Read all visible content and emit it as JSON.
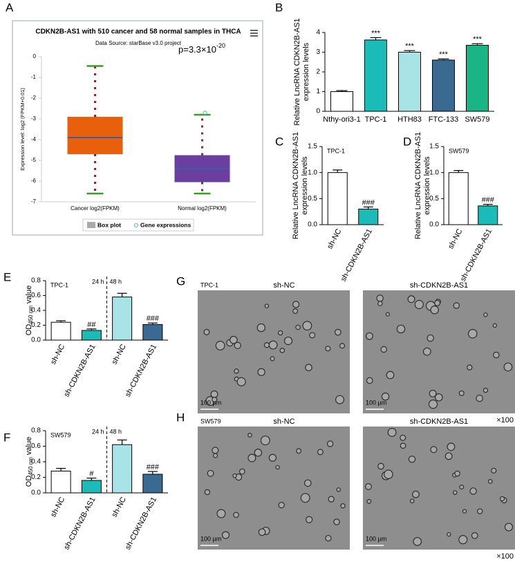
{
  "chart_data": [
    {
      "type": "box",
      "letter": "A",
      "title": "CDKN2B-AS1 with 510 cancer and 58 normal samples in THCA",
      "subtitle": "Data Source: starBase v3.0 project",
      "annotation": {
        "base": "p=3.3×10",
        "exponent": "-20"
      },
      "ylabel": "Expression level: log2 (FPKM+0.01)",
      "categories": [
        "Cancer log2(FPKM)",
        "Normal log2(FPKM)"
      ],
      "boxes": [
        {
          "whislo": -6.6,
          "q1": -4.7,
          "med": -3.9,
          "q3": -2.9,
          "whishi": -0.45,
          "fliers": [],
          "color": "#e8600c"
        },
        {
          "whislo": -6.6,
          "q1": -6.05,
          "med": -5.4,
          "q3": -4.75,
          "whishi": -2.8,
          "fliers": [
            -2.7
          ],
          "color": "#6a3fa0"
        }
      ],
      "ylim": [
        -7,
        0
      ],
      "yticks": [
        0,
        -1,
        -2,
        -3,
        -4,
        -5,
        -6,
        -7
      ],
      "legend": [
        "Box plot",
        "Gene expressions"
      ]
    },
    {
      "type": "bar",
      "letter": "B",
      "ylabel": [
        "Relative LncRNA CDKN2B-AS1",
        "expression levels"
      ],
      "categories": [
        "Nthy-ori3-1",
        "TPC-1",
        "HTH83",
        "FTC-133",
        "SW579"
      ],
      "values": [
        1.0,
        3.62,
        3.0,
        2.6,
        3.35
      ],
      "errors": [
        0.05,
        0.12,
        0.08,
        0.06,
        0.08
      ],
      "colors": [
        "#ffffff",
        "#1bbcb8",
        "#a8e4e6",
        "#3a6a92",
        "#1ab585"
      ],
      "annotations": [
        null,
        "***",
        "***",
        "***",
        "***"
      ],
      "ylim": [
        0,
        4
      ],
      "yticks": [
        0,
        1,
        2,
        3,
        4
      ]
    },
    {
      "type": "bar",
      "letter": "C",
      "cell_line": "TPC-1",
      "ylabel": [
        "Relative LncRNA CDKN2B-AS1",
        "expression levels"
      ],
      "categories": [
        "sh-NC",
        "sh-CDKN2B-AS1"
      ],
      "values": [
        1.0,
        0.3
      ],
      "errors": [
        0.05,
        0.04
      ],
      "colors": [
        "#ffffff",
        "#1bbcb8"
      ],
      "annotations": [
        null,
        "###"
      ],
      "ylim": [
        0,
        1.5
      ],
      "yticks": [
        {
          "value": 0,
          "label": "0.0"
        },
        0.5,
        {
          "value": 1,
          "label": "1.0"
        },
        1.5
      ]
    },
    {
      "type": "bar",
      "letter": "D",
      "cell_line": "SW579",
      "ylabel": [
        "Relative LncRNA CDKN2B-AS1",
        "expression levels"
      ],
      "categories": [
        "sh-NC",
        "sh-CDKN2B-AS1"
      ],
      "values": [
        1.0,
        0.36
      ],
      "errors": [
        0.04,
        0.03
      ],
      "colors": [
        "#ffffff",
        "#1bbcb8"
      ],
      "annotations": [
        null,
        "###"
      ],
      "ylim": [
        0,
        1.5
      ],
      "yticks": [
        {
          "value": 0,
          "label": "0.0"
        },
        0.5,
        {
          "value": 1,
          "label": "1.0"
        },
        1.5
      ]
    },
    {
      "type": "bar",
      "letter": "E",
      "cell_line": "TPC-1",
      "groups": [
        "24 h",
        "48 h"
      ],
      "ylabel": {
        "main": "OD",
        "sub": "450 nm",
        "rest": "value"
      },
      "categories": [
        "sh-NC",
        "sh-CDKN2B-AS1",
        "sh-NC",
        "sh-CDKN2B-AS1"
      ],
      "values": [
        0.24,
        0.13,
        0.58,
        0.21
      ],
      "errors": [
        0.02,
        0.02,
        0.05,
        0.02
      ],
      "colors": [
        "#ffffff",
        "#1bbcb8",
        "#a8e4e6",
        "#3a6a92"
      ],
      "annotations": [
        null,
        "##",
        null,
        "###"
      ],
      "ylim": [
        0,
        0.8
      ],
      "yticks": [
        {
          "value": 0,
          "label": "0.0"
        },
        0.2,
        0.4,
        0.6,
        0.8
      ]
    },
    {
      "type": "bar",
      "letter": "F",
      "cell_line": "SW579",
      "groups": [
        "24 h",
        "48 h"
      ],
      "ylabel": {
        "main": "OD",
        "sub": "450 nm",
        "rest": "value"
      },
      "categories": [
        "sh-NC",
        "sh-CDKN2B-AS1",
        "sh-NC",
        "sh-CDKN2B-AS1"
      ],
      "values": [
        0.28,
        0.16,
        0.62,
        0.24
      ],
      "errors": [
        0.035,
        0.03,
        0.06,
        0.035
      ],
      "colors": [
        "#ffffff",
        "#1bbcb8",
        "#a8e4e6",
        "#3a6a92"
      ],
      "annotations": [
        null,
        "#",
        null,
        "###"
      ],
      "ylim": [
        0,
        0.8
      ],
      "yticks": [
        {
          "value": 0,
          "label": "0.0"
        },
        0.2,
        0.4,
        0.6,
        0.8
      ]
    }
  ],
  "images": [
    {
      "letter": "G",
      "cell_line": "TPC-1",
      "columns": [
        "sh-NC",
        "sh-CDKN2B-AS1"
      ],
      "scale_bars": [
        "100 µm",
        "100 µm"
      ],
      "magnification": "×100"
    },
    {
      "letter": "H",
      "cell_line": "SW579",
      "columns": [
        "sh-NC",
        "sh-CDKN2B-AS1"
      ],
      "scale_bars": [
        "100 µm",
        "100 µm"
      ],
      "magnification": "×100"
    }
  ]
}
